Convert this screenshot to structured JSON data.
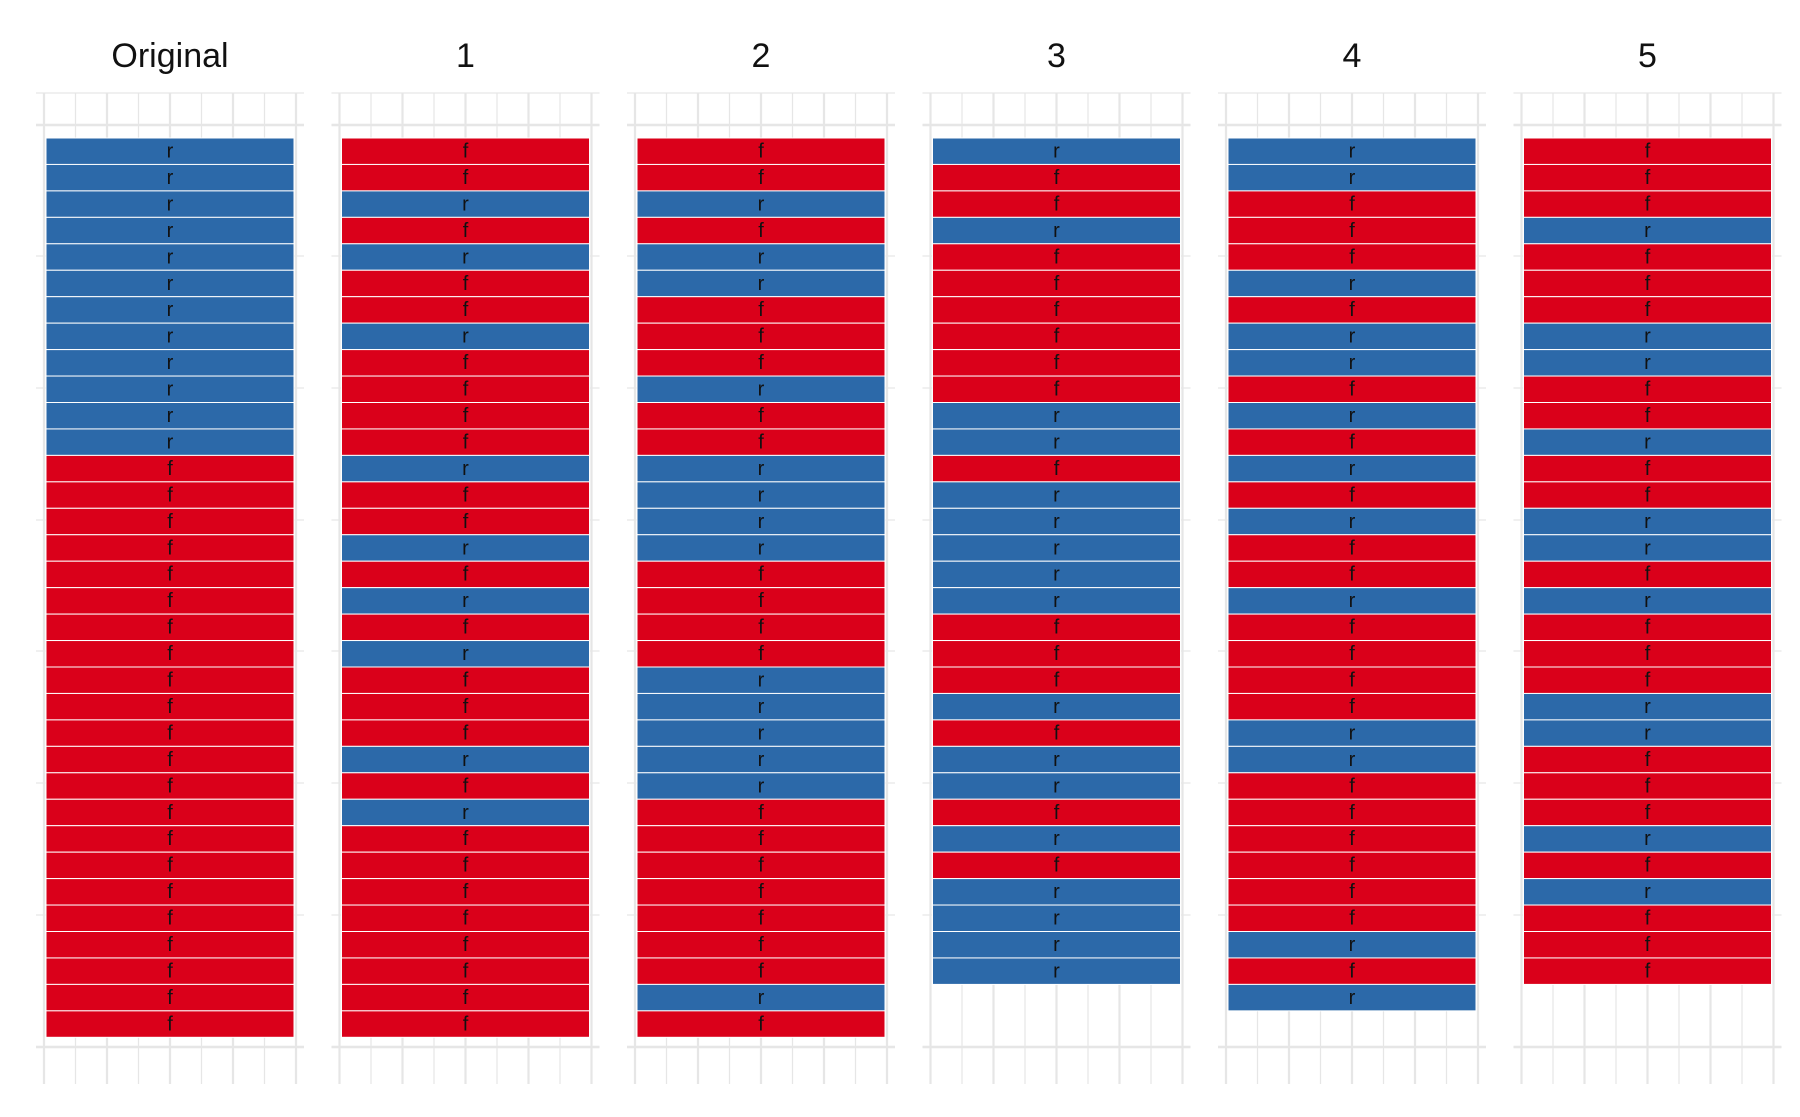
{
  "chart_data": [
    {
      "type": "table",
      "title": "Original",
      "cells": [
        "r",
        "r",
        "r",
        "r",
        "r",
        "r",
        "r",
        "r",
        "r",
        "r",
        "r",
        "r",
        "f",
        "f",
        "f",
        "f",
        "f",
        "f",
        "f",
        "f",
        "f",
        "f",
        "f",
        "f",
        "f",
        "f",
        "f",
        "f",
        "f",
        "f",
        "f",
        "f",
        "f",
        "f"
      ]
    },
    {
      "type": "table",
      "title": "1",
      "cells": [
        "f",
        "f",
        "r",
        "f",
        "r",
        "f",
        "f",
        "r",
        "f",
        "f",
        "f",
        "f",
        "r",
        "f",
        "f",
        "r",
        "f",
        "r",
        "f",
        "r",
        "f",
        "f",
        "f",
        "r",
        "f",
        "r",
        "f",
        "f",
        "f",
        "f",
        "f",
        "f",
        "f",
        "f"
      ]
    },
    {
      "type": "table",
      "title": "2",
      "cells": [
        "f",
        "f",
        "r",
        "f",
        "r",
        "r",
        "f",
        "f",
        "f",
        "r",
        "f",
        "f",
        "r",
        "r",
        "r",
        "r",
        "f",
        "f",
        "f",
        "f",
        "r",
        "r",
        "r",
        "r",
        "r",
        "f",
        "f",
        "f",
        "f",
        "f",
        "f",
        "f",
        "r",
        "f"
      ]
    },
    {
      "type": "table",
      "title": "3",
      "cells": [
        "r",
        "f",
        "f",
        "r",
        "f",
        "f",
        "f",
        "f",
        "f",
        "f",
        "r",
        "r",
        "f",
        "r",
        "r",
        "r",
        "r",
        "r",
        "f",
        "f",
        "f",
        "r",
        "f",
        "r",
        "r",
        "f",
        "r",
        "f",
        "r",
        "r",
        "r",
        "r"
      ]
    },
    {
      "type": "table",
      "title": "4",
      "cells": [
        "r",
        "r",
        "f",
        "f",
        "f",
        "r",
        "f",
        "r",
        "r",
        "f",
        "r",
        "f",
        "r",
        "f",
        "r",
        "f",
        "f",
        "r",
        "f",
        "f",
        "f",
        "f",
        "r",
        "r",
        "f",
        "f",
        "f",
        "f",
        "f",
        "f",
        "r",
        "f",
        "r"
      ]
    },
    {
      "type": "table",
      "title": "5",
      "cells": [
        "f",
        "f",
        "f",
        "r",
        "f",
        "f",
        "f",
        "r",
        "r",
        "f",
        "f",
        "r",
        "f",
        "f",
        "r",
        "r",
        "f",
        "r",
        "f",
        "f",
        "f",
        "r",
        "r",
        "f",
        "f",
        "f",
        "r",
        "f",
        "r",
        "f",
        "f",
        "f"
      ]
    }
  ],
  "colors": {
    "f": "#DA001A",
    "r": "#2C69A9",
    "grid": "#E6E6E6",
    "cell_border": "#FFFFFF",
    "label_text": "#111111",
    "title_text": "#111111"
  }
}
